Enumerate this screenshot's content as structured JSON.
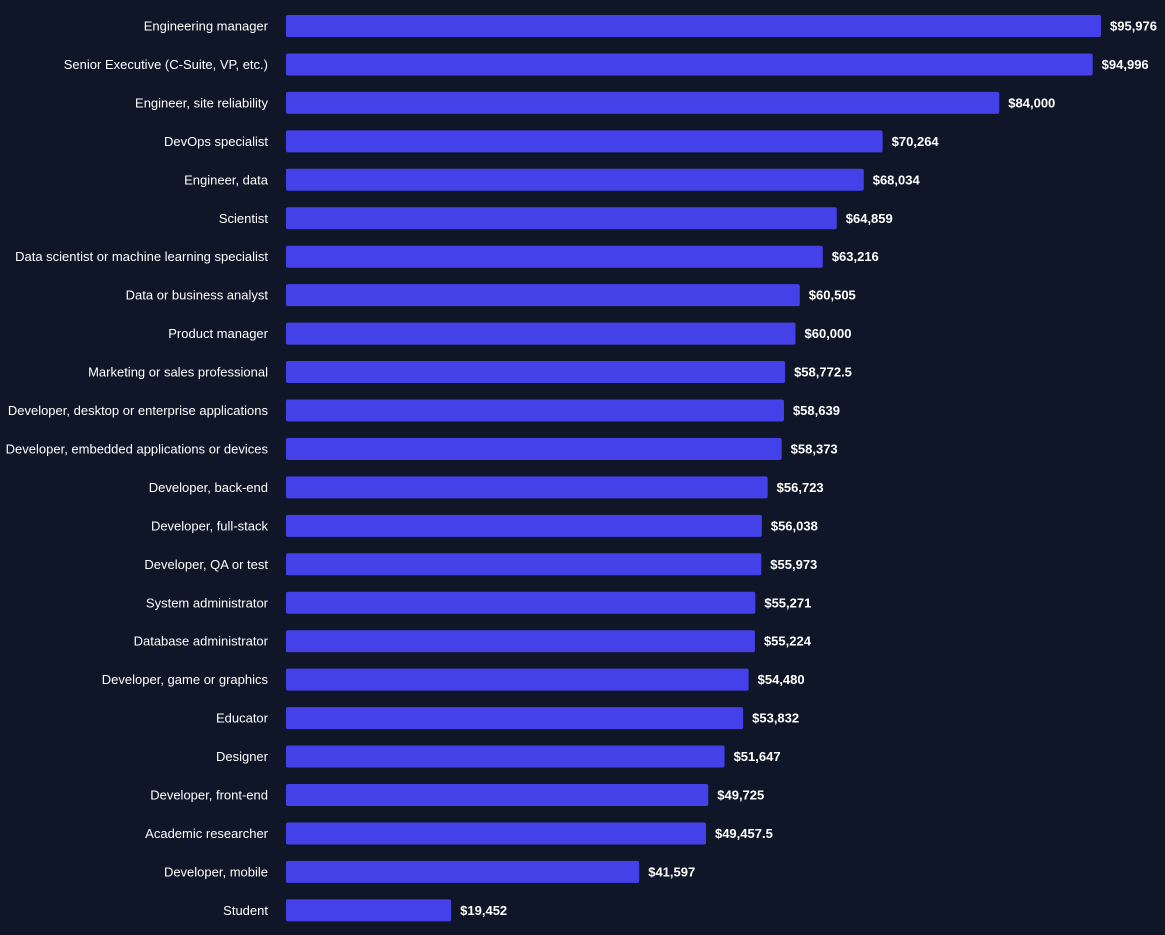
{
  "chart_data": {
    "type": "bar",
    "orientation": "horizontal",
    "bar_color": "#4541e8",
    "background_color": "#0f1627",
    "text_color": "#ffffff",
    "grid": false,
    "legend": "none",
    "xlim": [
      0,
      95976
    ],
    "bars": [
      {
        "category": "Engineering manager",
        "value": 95976,
        "label": "$95,976"
      },
      {
        "category": "Senior Executive (C-Suite, VP, etc.)",
        "value": 94996,
        "label": "$94,996"
      },
      {
        "category": "Engineer, site reliability",
        "value": 84000,
        "label": "$84,000"
      },
      {
        "category": "DevOps specialist",
        "value": 70264,
        "label": "$70,264"
      },
      {
        "category": "Engineer, data",
        "value": 68034,
        "label": "$68,034"
      },
      {
        "category": "Scientist",
        "value": 64859,
        "label": "$64,859"
      },
      {
        "category": "Data scientist or machine learning specialist",
        "value": 63216,
        "label": "$63,216"
      },
      {
        "category": "Data or business analyst",
        "value": 60505,
        "label": "$60,505"
      },
      {
        "category": "Product manager",
        "value": 60000,
        "label": "$60,000"
      },
      {
        "category": "Marketing or sales professional",
        "value": 58772.5,
        "label": "$58,772.5"
      },
      {
        "category": "Developer, desktop or enterprise applications",
        "value": 58639,
        "label": "$58,639"
      },
      {
        "category": "Developer, embedded applications or devices",
        "value": 58373,
        "label": "$58,373"
      },
      {
        "category": "Developer, back-end",
        "value": 56723,
        "label": "$56,723"
      },
      {
        "category": "Developer, full-stack",
        "value": 56038,
        "label": "$56,038"
      },
      {
        "category": "Developer, QA or test",
        "value": 55973,
        "label": "$55,973"
      },
      {
        "category": "System administrator",
        "value": 55271,
        "label": "$55,271"
      },
      {
        "category": "Database administrator",
        "value": 55224,
        "label": "$55,224"
      },
      {
        "category": "Developer, game or graphics",
        "value": 54480,
        "label": "$54,480"
      },
      {
        "category": "Educator",
        "value": 53832,
        "label": "$53,832"
      },
      {
        "category": "Designer",
        "value": 51647,
        "label": "$51,647"
      },
      {
        "category": "Developer, front-end",
        "value": 49725,
        "label": "$49,725"
      },
      {
        "category": "Academic researcher",
        "value": 49457.5,
        "label": "$49,457.5"
      },
      {
        "category": "Developer, mobile",
        "value": 41597,
        "label": "$41,597"
      },
      {
        "category": "Student",
        "value": 19452,
        "label": "$19,452"
      }
    ]
  }
}
